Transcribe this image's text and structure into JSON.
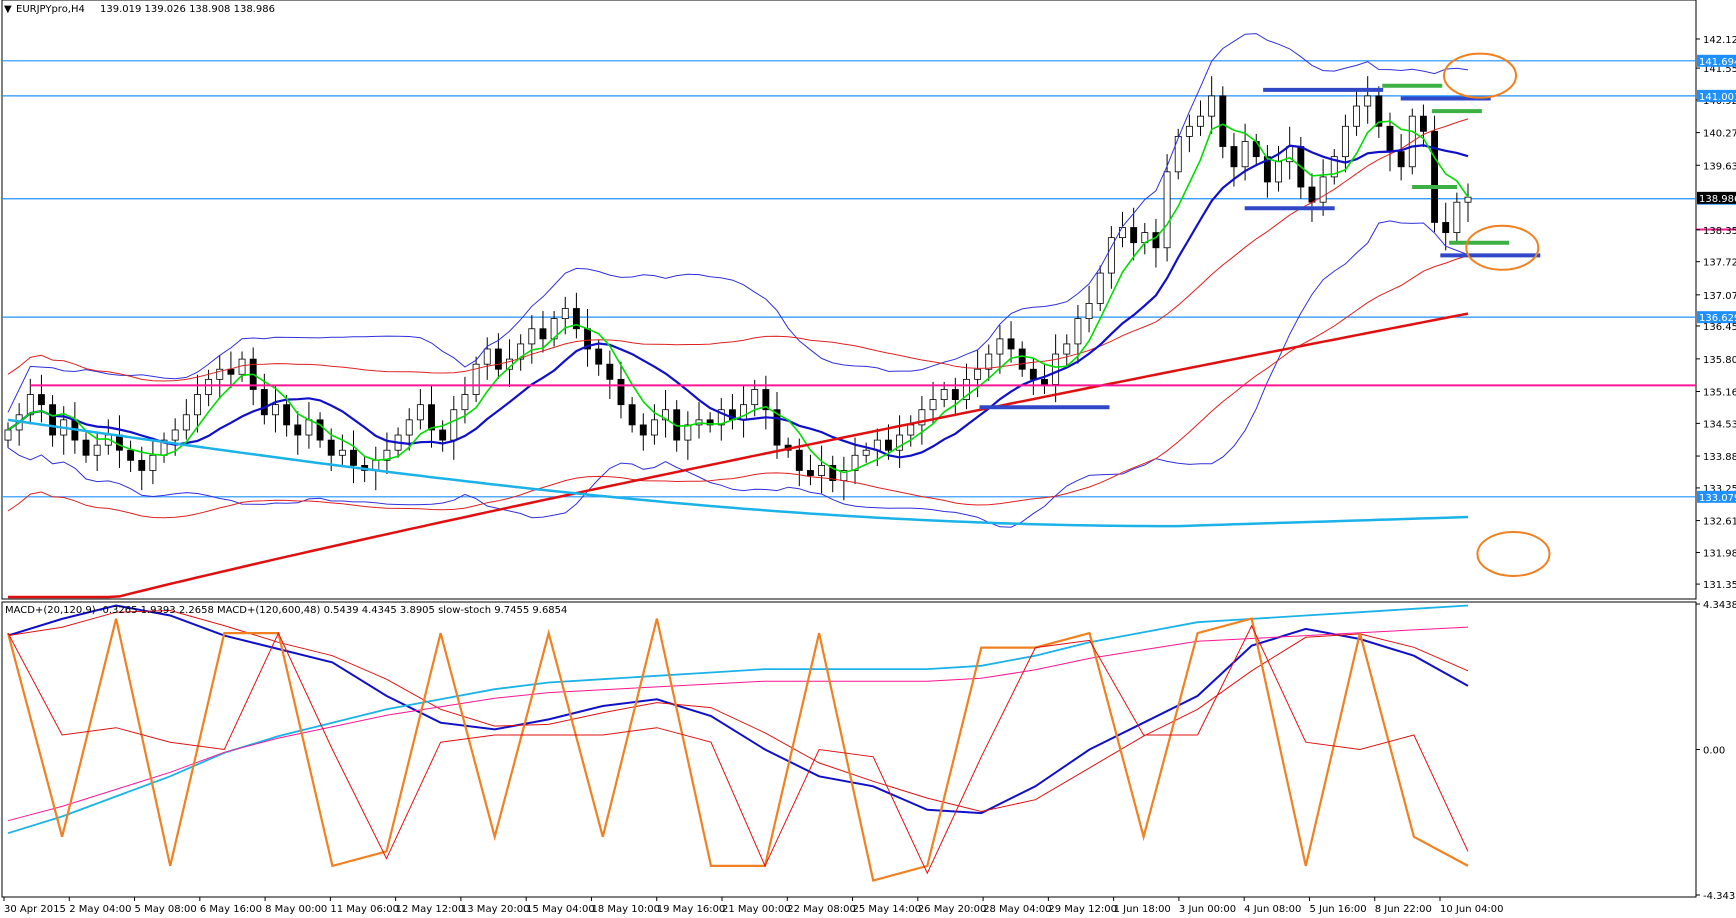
{
  "header": {
    "symbol": "EURJPYpro,H4",
    "ohlc": "139.019 139.026 138.908 138.986"
  },
  "sub_header": {
    "text": "MACD+(20,120,9) -0.3265 1.9393 2.2658  MACD+(120,600,48) 0.5439 4.4345 3.8905  slow-stoch 9.7455 9.6854"
  },
  "colors": {
    "grid": "#ffffff",
    "axis": "#000000",
    "hline_blue": "#1e90ff",
    "magenta": "#ff1493",
    "red_ma": "#e01010",
    "cyan_ma": "#1ab2e8",
    "blue_ma": "#1010c8",
    "green_ma": "#00dd00",
    "bb": "#3030dd",
    "envelope": "#e02020",
    "orange": "#f08020",
    "bar_green": "#3cb043",
    "bar_blue": "#3048c8",
    "price_label_bg": "#1e90ff"
  },
  "chart_data": [
    {
      "type": "candlestick",
      "title": "EURJPYpro,H4",
      "y_ticks": [
        "142.125",
        "141.550",
        "140.920",
        "140.275",
        "139.630",
        "138.355",
        "137.725",
        "137.070",
        "136.455",
        "135.805",
        "135.160",
        "134.530",
        "133.885",
        "133.255",
        "132.610",
        "131.980",
        "131.355"
      ],
      "y_range": [
        131.1,
        142.5
      ],
      "x_labels": [
        "30 Apr 2015",
        "2 May 04:00",
        "5 May 08:00",
        "6 May 16:00",
        "8 May 00:00",
        "11 May 06:00",
        "12 May 12:00",
        "13 May 20:00",
        "15 May 04:00",
        "18 May 10:00",
        "19 May 16:00",
        "21 May 00:00",
        "22 May 08:00",
        "25 May 14:00",
        "26 May 20:00",
        "28 May 04:00",
        "29 May 12:00",
        "1 Jun 18:00",
        "3 Jun 00:00",
        "4 Jun 08:00",
        "5 Jun 16:00",
        "8 Jun 22:00",
        "10 Jun 04:00"
      ],
      "price_labels": [
        {
          "value": 141.694,
          "text": "141.694"
        },
        {
          "value": 141.001,
          "text": "141.001"
        },
        {
          "value": 138.969,
          "text": "138.969"
        },
        {
          "value": 136.629,
          "text": "136.629"
        },
        {
          "value": 133.079,
          "text": "133.079"
        }
      ],
      "highlight_label": {
        "value": 138.986,
        "text": "138.986"
      },
      "support_resistance": [
        141.694,
        141.001,
        138.969,
        136.629,
        133.079
      ],
      "magenta_lines": [
        {
          "from_bar": 2,
          "to_bar": 257,
          "value": 135.28
        },
        {
          "from_bar": 272,
          "to_bar": 336,
          "value": 138.36
        }
      ],
      "closes": [
        134.4,
        134.7,
        135.1,
        134.9,
        134.3,
        134.6,
        134.2,
        133.9,
        134.1,
        134.3,
        134.0,
        133.8,
        133.6,
        133.9,
        134.2,
        134.4,
        134.7,
        135.1,
        135.4,
        135.6,
        135.5,
        135.8,
        135.2,
        134.7,
        134.9,
        134.5,
        134.3,
        134.6,
        134.2,
        133.9,
        134.0,
        133.7,
        133.6,
        133.8,
        134.0,
        134.3,
        134.6,
        134.9,
        134.4,
        134.2,
        134.8,
        135.1,
        135.7,
        136.0,
        135.6,
        135.8,
        136.1,
        136.4,
        136.2,
        136.6,
        136.8,
        136.4,
        136.0,
        135.7,
        135.4,
        134.9,
        134.5,
        134.3,
        134.6,
        134.8,
        134.2,
        134.5,
        134.6,
        134.5,
        134.8,
        134.6,
        134.9,
        135.2,
        134.8,
        134.1,
        134.0,
        133.6,
        133.5,
        133.7,
        133.4,
        133.6,
        133.9,
        134.0,
        134.2,
        134.0,
        134.3,
        134.5,
        134.8,
        135.0,
        135.2,
        135.0,
        135.4,
        135.6,
        135.9,
        136.2,
        136.0,
        135.6,
        135.4,
        135.3,
        135.9,
        136.1,
        136.6,
        136.9,
        137.5,
        138.2,
        138.4,
        138.1,
        138.3,
        138.0,
        139.5,
        140.2,
        140.4,
        140.6,
        141.0,
        140.0,
        139.6,
        140.1,
        139.8,
        139.3,
        139.7,
        140.0,
        139.2,
        138.9,
        139.4,
        139.8,
        140.4,
        140.8,
        141.0,
        140.4,
        139.9,
        139.6,
        140.6,
        140.3,
        138.5,
        138.3,
        138.9,
        139.0
      ],
      "indicators": [
        "Bollinger Bands",
        "Envelope",
        "MA(fast)",
        "MA(slow)",
        "MA(long)",
        "MA(very long)"
      ]
    },
    {
      "type": "line",
      "title": "MACD+ / slow-stoch",
      "y_ticks": [
        "4.3438",
        "0.00",
        "-4.3438"
      ],
      "y_range": [
        -4.3438,
        4.3438
      ],
      "series": [
        {
          "name": "MACD+(20,120,9)",
          "values": [
            3.4,
            3.9,
            4.3,
            4.0,
            3.4,
            3.0,
            2.6,
            1.6,
            0.8,
            0.6,
            0.9,
            1.3,
            1.5,
            1.0,
            0.0,
            -0.8,
            -1.1,
            -1.8,
            -1.9,
            -1.1,
            0.0,
            0.8,
            1.6,
            3.1,
            3.6,
            3.3,
            2.8,
            1.9
          ]
        },
        {
          "name": "MACD+(120,600,48)",
          "values": [
            -2.5,
            -2.0,
            -1.4,
            -0.8,
            -0.1,
            0.4,
            0.8,
            1.2,
            1.5,
            1.8,
            2.0,
            2.1,
            2.2,
            2.3,
            2.4,
            2.4,
            2.4,
            2.4,
            2.5,
            2.8,
            3.2,
            3.5,
            3.8,
            3.9,
            4.0,
            4.1,
            4.2,
            4.3
          ]
        },
        {
          "name": "slow-stoch",
          "values": [
            90,
            20,
            95,
            10,
            90,
            90,
            10,
            15,
            90,
            20,
            90,
            20,
            95,
            10,
            10,
            90,
            5,
            10,
            85,
            85,
            90,
            20,
            90,
            95,
            10,
            90,
            20,
            10
          ]
        }
      ]
    }
  ]
}
